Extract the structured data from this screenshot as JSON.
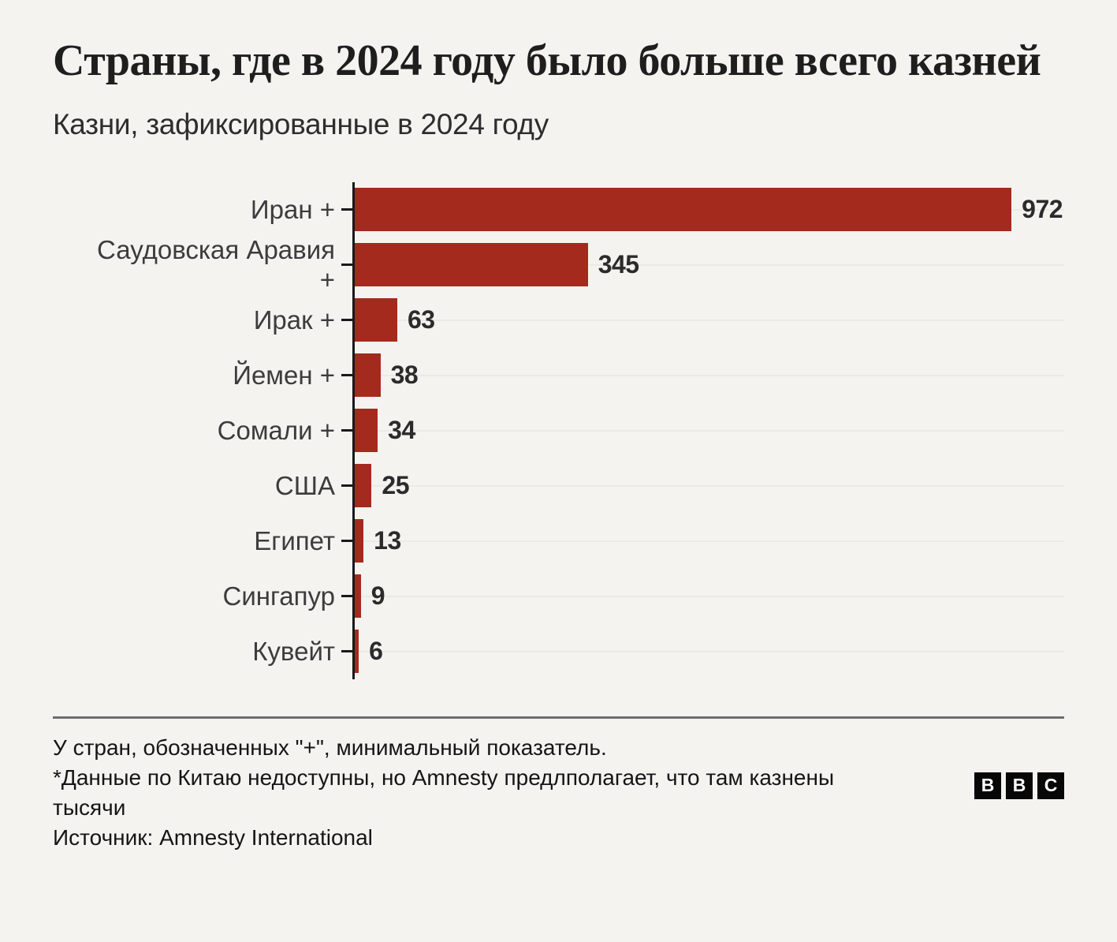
{
  "header": {
    "title": "Страны, где в 2024 году было больше всего казней",
    "subtitle": "Казни, зафиксированные в 2024 году"
  },
  "chart_data": {
    "type": "bar",
    "orientation": "horizontal",
    "title": "Страны, где в 2024 году было больше всего казней",
    "subtitle": "Казни, зафиксированные в 2024 году",
    "categories": [
      "Иран +",
      "Саудовская Аравия +",
      "Ирак +",
      "Йемен +",
      "Сомали +",
      "США",
      "Египет",
      "Сингапур",
      "Кувейт"
    ],
    "values": [
      972,
      345,
      63,
      38,
      34,
      25,
      13,
      9,
      6
    ],
    "label_lines": [
      [
        "Иран +"
      ],
      [
        "Саудовская Аравия",
        "+"
      ],
      [
        "Ирак +"
      ],
      [
        "Йемен +"
      ],
      [
        "Сомали +"
      ],
      [
        "США"
      ],
      [
        "Египет"
      ],
      [
        "Сингапур"
      ],
      [
        "Кувейт"
      ]
    ],
    "value_labels": [
      972,
      345,
      63,
      38,
      34,
      25,
      13,
      9,
      6
    ],
    "xlim": [
      0,
      1050
    ],
    "grid": "faint horizontal line per row",
    "legend": "none",
    "bar_color": "#a42a1e"
  },
  "footer": {
    "note_plus": "У стран, обозначенных \"+\", минимальный показатель.",
    "note_china": "*Данные по Китаю недоступны, но Amnesty предлполагает, что там казнены тысячи",
    "source": "Источник: Amnesty International",
    "logo_letters": [
      "B",
      "B",
      "C"
    ]
  },
  "colors": {
    "background": "#f4f3f0",
    "bar": "#a42a1e",
    "axis": "#19191c",
    "title_text": "#1e1e1e",
    "label_text": "#3c3c3c",
    "value_text": "#2b2b2b",
    "gridline": "#eceae7",
    "divider": "#6d6d6d",
    "logo_bg": "#070707"
  }
}
